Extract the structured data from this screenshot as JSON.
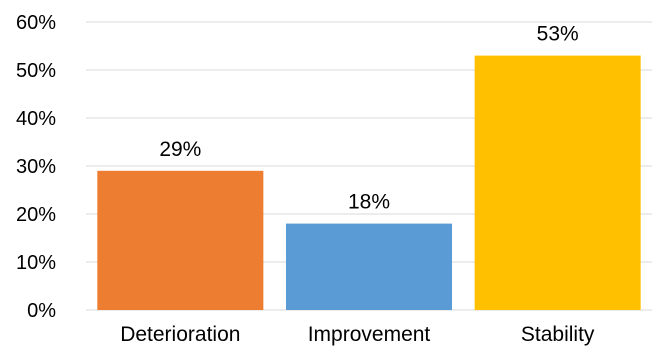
{
  "chart_data": {
    "type": "bar",
    "categories": [
      "Deterioration",
      "Improvement",
      "Stability"
    ],
    "values": [
      29,
      18,
      53
    ],
    "data_labels": [
      "29%",
      "18%",
      "53%"
    ],
    "colors": [
      "#ED7D31",
      "#5B9BD5",
      "#FFC000"
    ],
    "title": "",
    "xlabel": "",
    "ylabel": "",
    "ylim": [
      0,
      60
    ],
    "yticks": [
      0,
      10,
      20,
      30,
      40,
      50,
      60
    ],
    "ytick_labels": [
      "0%",
      "10%",
      "20%",
      "30%",
      "40%",
      "50%",
      "60%"
    ],
    "grid": true,
    "legend": "none"
  }
}
